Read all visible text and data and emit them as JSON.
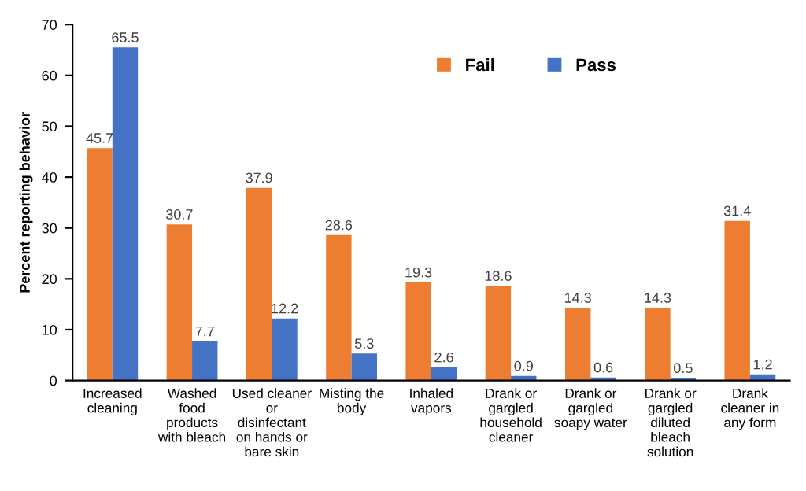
{
  "chart_data": {
    "type": "bar",
    "ylabel": "Percent reporting behavior",
    "categories": [
      "Increased\ncleaning",
      "Washed\nfood\nproducts\nwith bleach",
      "Used cleaner\nor\ndisinfectant\non hands or\nbare skin",
      "Misting the\nbody",
      "Inhaled\nvapors",
      "Drank or\ngargled\nhousehold\ncleaner",
      "Drank or\ngargled\nsoapy water",
      "Drank or\ngargled\ndiluted\nbleach\nsolution",
      "Drank\ncleaner in\nany form"
    ],
    "series": [
      {
        "name": "Fail",
        "color": "#ed7d31",
        "values": [
          45.7,
          30.7,
          37.9,
          28.6,
          19.3,
          18.6,
          14.3,
          14.3,
          31.4
        ]
      },
      {
        "name": "Pass",
        "color": "#4472c4",
        "values": [
          65.5,
          7.7,
          12.2,
          5.3,
          2.6,
          0.9,
          0.6,
          0.5,
          1.2
        ]
      }
    ],
    "ylim": [
      0,
      70
    ],
    "yticks": [
      0,
      10,
      20,
      30,
      40,
      50,
      60,
      70
    ],
    "data_labels": true,
    "legend": "top right",
    "grid": false
  }
}
